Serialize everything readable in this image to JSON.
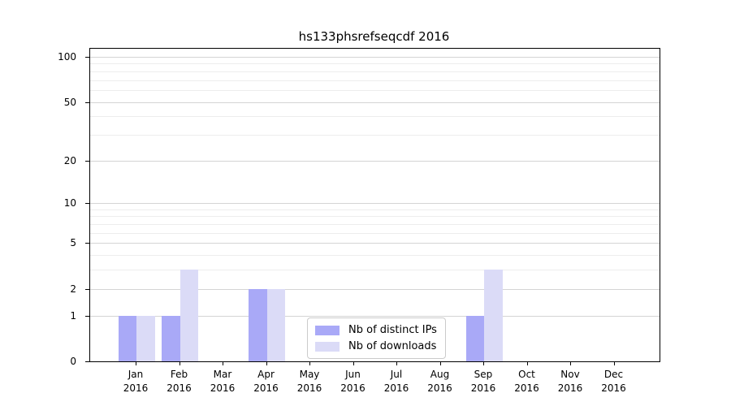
{
  "figure": {
    "title": "hs133phsrefseqcdf 2016"
  },
  "chart_data": {
    "type": "bar",
    "title": "hs133phsrefseqcdf 2016",
    "categories": [
      "Jan 2016",
      "Feb 2016",
      "Mar 2016",
      "Apr 2016",
      "May 2016",
      "Jun 2016",
      "Jul 2016",
      "Aug 2016",
      "Sep 2016",
      "Oct 2016",
      "Nov 2016",
      "Dec 2016"
    ],
    "x_months": [
      "Jan",
      "Feb",
      "Mar",
      "Apr",
      "May",
      "Jun",
      "Jul",
      "Aug",
      "Sep",
      "Oct",
      "Nov",
      "Dec"
    ],
    "x_year": "2016",
    "series": [
      {
        "name": "Nb of distinct IPs",
        "color": "#a9a9f7",
        "values": [
          1,
          1,
          0,
          2,
          0,
          0,
          0,
          0,
          1,
          0,
          0,
          0
        ]
      },
      {
        "name": "Nb of downloads",
        "color": "#dbdbf7",
        "values": [
          1,
          3,
          0,
          2,
          0,
          0,
          0,
          0,
          3,
          0,
          0,
          0
        ]
      }
    ],
    "y_scale": "log1p",
    "y_ticks": [
      0,
      1,
      2,
      5,
      10,
      20,
      50,
      100
    ],
    "y_minor_gridlines": [
      3,
      4,
      6,
      7,
      8,
      9,
      30,
      40,
      60,
      70,
      80,
      90
    ],
    "ylim": [
      0,
      100
    ],
    "grid": true,
    "legend": {
      "position": "lower center inside",
      "items": [
        "Nb of distinct IPs",
        "Nb of downloads"
      ]
    },
    "colors": {
      "axis": "#000000",
      "grid_major": "#d4d4d4",
      "grid_minor": "#ededed",
      "background": "#ffffff"
    }
  }
}
